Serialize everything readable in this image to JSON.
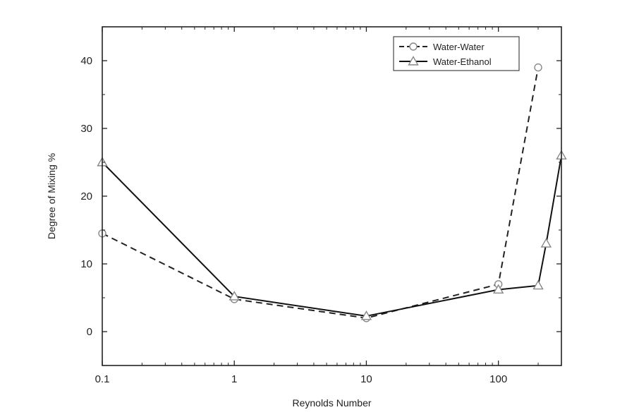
{
  "chart_data": {
    "type": "line",
    "title": "",
    "xlabel": "Reynolds Number",
    "ylabel": "Degree of Mixing %",
    "x_scale": "log",
    "xlim": [
      0.1,
      300
    ],
    "ylim": [
      -5,
      45
    ],
    "x_ticks": [
      {
        "value": 0.1,
        "label": "0.1"
      },
      {
        "value": 1,
        "label": "1"
      },
      {
        "value": 10,
        "label": "10"
      },
      {
        "value": 100,
        "label": "100"
      }
    ],
    "y_ticks": [
      {
        "value": 0,
        "label": "0"
      },
      {
        "value": 10,
        "label": "10"
      },
      {
        "value": 20,
        "label": "20"
      },
      {
        "value": 30,
        "label": "30"
      },
      {
        "value": 40,
        "label": "40"
      }
    ],
    "grid": false,
    "legend_position": "top-right",
    "series": [
      {
        "name": "Water-Water",
        "line_style": "dashed",
        "marker": "circle",
        "color": "#222222",
        "points": [
          {
            "x": 0.1,
            "y": 14.5
          },
          {
            "x": 1,
            "y": 4.8
          },
          {
            "x": 10,
            "y": 2.0
          },
          {
            "x": 100,
            "y": 7.0
          },
          {
            "x": 200,
            "y": 39.0
          }
        ]
      },
      {
        "name": "Water-Ethanol",
        "line_style": "solid",
        "marker": "triangle",
        "color": "#111111",
        "points": [
          {
            "x": 0.1,
            "y": 25.0
          },
          {
            "x": 1,
            "y": 5.2
          },
          {
            "x": 10,
            "y": 2.3
          },
          {
            "x": 100,
            "y": 6.2
          },
          {
            "x": 200,
            "y": 6.8
          },
          {
            "x": 230,
            "y": 13.0
          },
          {
            "x": 300,
            "y": 26.0
          }
        ]
      }
    ]
  }
}
